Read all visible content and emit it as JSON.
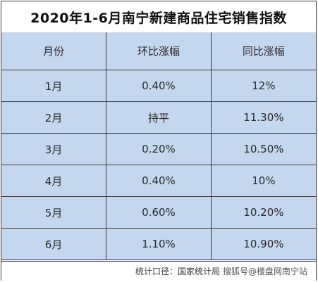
{
  "title": "2020年1-6月南宁新建商品住宅销售指数",
  "table": {
    "headers": [
      "月份",
      "环比涨幅",
      "同比涨幅"
    ],
    "rows": [
      [
        "1月",
        "0.40%",
        "12%"
      ],
      [
        "2月",
        "持平",
        "11.30%"
      ],
      [
        "3月",
        "0.20%",
        "10.50%"
      ],
      [
        "4月",
        "0.40%",
        "10%"
      ],
      [
        "5月",
        "0.60%",
        "10.20%"
      ],
      [
        "6月",
        "1.10%",
        "10.90%"
      ]
    ]
  },
  "footer": {
    "source": "统计口径：国家统计局",
    "watermark": "搜狐号@楼盘网南宁站"
  },
  "colors": {
    "cell_background": "#c5d7ee",
    "border": "#3a3a3a"
  }
}
